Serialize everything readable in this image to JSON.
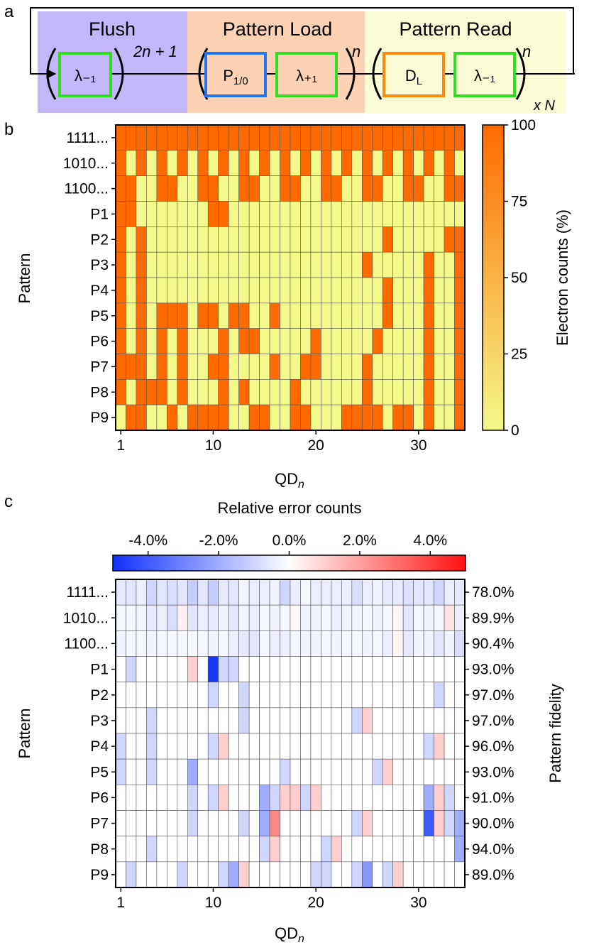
{
  "panel_a": {
    "label": "a",
    "flush": {
      "title": "Flush",
      "box": "λ₋₁",
      "exponent": "2n + 1",
      "color": "#c3b7f9"
    },
    "load": {
      "title": "Pattern Load",
      "box1": "P1/0",
      "box1_main": "P",
      "box1_sub": "1/0",
      "box2": "λ₊₁",
      "exponent": "n",
      "color": "#fcd1b4"
    },
    "read": {
      "title": "Pattern Read",
      "box1": "DL",
      "box1_main": "D",
      "box1_sub": "L",
      "box2": "λ₋₁",
      "exponent": "n",
      "color": "#fbfcd5"
    },
    "repeat": "x N",
    "colors": {
      "green": "#33dd22",
      "blue": "#2277ee",
      "orange": "#ff8811"
    }
  },
  "chart_data": [
    {
      "panel": "b",
      "type": "heatmap",
      "xlabel": "QDn",
      "ylabel": "Pattern",
      "yticks": [
        "1111...",
        "1010...",
        "1100...",
        "P1",
        "P2",
        "P3",
        "P4",
        "P5",
        "P6",
        "P7",
        "P8",
        "P9"
      ],
      "xticks": [
        1,
        10,
        20,
        30
      ],
      "n_columns": 34,
      "colorbar": {
        "label": "Electron counts (%)",
        "ticks": [
          0,
          25,
          50,
          75,
          100
        ],
        "range": [
          0,
          100
        ],
        "low_color": "#f4f98a",
        "high_color": "#ff6a00"
      },
      "rows": [
        "1111111111111111111111111111111111",
        "1010101010101010101010101010101010",
        "1100110011001100110011001100110011",
        "1100000001100000000000000000000000",
        "1010000000000000000000000010000011",
        "1010000000000000000000001000001001",
        "1010000000000000000000000010001001",
        "1010111011011001000000000010001001",
        "1010101000101100000100000100001001",
        "1110101001100001001100001000001001",
        "1011101000101000010000001000001001",
        "0110010111100110011000111101101001"
      ]
    },
    {
      "panel": "c",
      "type": "heatmap",
      "xlabel": "QDn",
      "ylabel": "Pattern",
      "right_label": "Pattern fidelity",
      "yticks": [
        "1111...",
        "1010...",
        "1100...",
        "P1",
        "P2",
        "P3",
        "P4",
        "P5",
        "P6",
        "P7",
        "P8",
        "P9"
      ],
      "fidelity": [
        "78.0%",
        "89.9%",
        "90.4%",
        "93.0%",
        "97.0%",
        "97.0%",
        "96.0%",
        "93.0%",
        "91.0%",
        "90.0%",
        "94.0%",
        "89.0%"
      ],
      "xticks": [
        1,
        10,
        20,
        30
      ],
      "n_columns": 34,
      "colorbar": {
        "label": "Relative error counts",
        "ticks": [
          "-4.0%",
          "-2.0%",
          "0.0%",
          "2.0%",
          "4.0%"
        ],
        "tick_values": [
          -4,
          -2,
          0,
          2,
          4
        ],
        "range": [
          -5,
          5
        ],
        "low_color": "#1030ff",
        "mid_color": "#ffffff",
        "high_color": "#ff1010"
      },
      "values": [
        [
          -0.5,
          -0.6,
          -0.4,
          -1.0,
          -0.6,
          -0.8,
          -0.6,
          -1.2,
          -0.6,
          -1.2,
          -0.5,
          -0.6,
          -0.3,
          -0.4,
          -0.4,
          -0.3,
          -1.0,
          -0.4,
          -0.2,
          -0.4,
          -0.4,
          -0.4,
          -0.4,
          -0.8,
          -0.4,
          -0.3,
          -0.5,
          -0.5,
          -0.7,
          -0.6,
          -0.6,
          -1.0,
          -0.4,
          -0.5
        ],
        [
          -0.2,
          -0.2,
          -0.3,
          -0.5,
          -0.4,
          -0.8,
          0.3,
          -0.6,
          -0.4,
          -0.5,
          -0.3,
          -0.6,
          -0.3,
          -0.4,
          -0.2,
          -0.3,
          -0.2,
          0.1,
          -0.3,
          -0.3,
          -0.2,
          -0.4,
          -0.3,
          -0.3,
          -0.2,
          -0.3,
          -0.2,
          0.2,
          -0.6,
          -0.2,
          -0.3,
          -0.2,
          0.6,
          -0.4
        ],
        [
          -0.3,
          -0.2,
          -0.2,
          -0.3,
          -0.2,
          -0.2,
          -0.2,
          -0.2,
          -0.2,
          -0.3,
          -0.2,
          -0.4,
          -0.5,
          -0.6,
          -0.2,
          -0.4,
          -0.4,
          -0.2,
          -0.3,
          -0.3,
          -0.2,
          -0.3,
          -0.2,
          -0.2,
          -0.3,
          -0.2,
          -0.4,
          0.2,
          -0.5,
          -0.3,
          -0.3,
          -0.6,
          -0.3,
          -0.8
        ],
        [
          0,
          -1.0,
          0,
          0,
          0,
          0,
          0,
          1.0,
          0,
          -4.8,
          -1.0,
          -1.0,
          0,
          0,
          0,
          0,
          0,
          0,
          0,
          0,
          0,
          0,
          0,
          0,
          0,
          0,
          0,
          0,
          0,
          0,
          0,
          0,
          0,
          0
        ],
        [
          0,
          0,
          0,
          0,
          0,
          0,
          0,
          0,
          0,
          -1.0,
          0,
          0,
          -1.0,
          0,
          0,
          0,
          0,
          0,
          0,
          0,
          0,
          0,
          0,
          0,
          0,
          0,
          0,
          0,
          0,
          0,
          0,
          -1.0,
          0,
          0
        ],
        [
          0,
          0,
          0,
          -1.0,
          0,
          0,
          0,
          0,
          0,
          0,
          0,
          0,
          -1.0,
          0,
          0,
          0,
          0,
          0,
          0,
          0,
          0,
          0,
          0,
          -1.0,
          1.0,
          0,
          0,
          0,
          0,
          0,
          0,
          0,
          0,
          0
        ],
        [
          -1.0,
          0,
          0,
          -1.0,
          0,
          0,
          0,
          0,
          0,
          -1.0,
          1.0,
          0,
          0,
          0,
          0,
          0,
          0,
          0,
          0,
          0,
          0,
          0,
          0,
          0,
          0,
          0,
          0,
          0,
          0,
          0,
          -1.0,
          1.0,
          0,
          0
        ],
        [
          -1.0,
          0,
          0,
          -1.0,
          0,
          0,
          0,
          -2.0,
          0,
          0,
          0,
          0,
          0,
          0,
          0,
          0,
          -1.0,
          0,
          0,
          0,
          0,
          0,
          0,
          0,
          0,
          -1.0,
          1.0,
          0,
          0,
          0,
          0,
          0,
          0,
          0
        ],
        [
          0,
          0,
          0,
          0,
          0,
          0,
          0,
          -1.0,
          0,
          -1.0,
          1.0,
          0,
          0,
          0,
          -2.0,
          -1.0,
          1.0,
          1.0,
          -1.0,
          1.0,
          0,
          0,
          0,
          0,
          0,
          0,
          0,
          0,
          0,
          0,
          -2.0,
          1.0,
          -1.0,
          0
        ],
        [
          0,
          0,
          0,
          0,
          0,
          0,
          0,
          -1.0,
          0,
          0,
          0,
          0,
          -1.0,
          0,
          -2.0,
          2.5,
          0,
          0,
          0,
          0,
          0,
          0,
          0,
          -1.0,
          1.0,
          0,
          0,
          0,
          0,
          0,
          -4.0,
          1.0,
          -1.0,
          -2.0
        ],
        [
          0,
          0,
          0,
          -1.0,
          0,
          0,
          0,
          0,
          0,
          0,
          0,
          0,
          0,
          0,
          -1.0,
          1.0,
          0,
          0,
          0,
          0,
          -1.0,
          1.0,
          0,
          0,
          0,
          0,
          0,
          0,
          0,
          0,
          0,
          0,
          0,
          -2.0
        ],
        [
          0,
          -1.0,
          0,
          0,
          0,
          0,
          -1.0,
          0,
          0,
          0,
          -1.0,
          -2.0,
          1.0,
          0,
          0,
          0,
          0,
          0,
          0,
          -1.0,
          -1.0,
          0,
          0,
          -1.0,
          -2.5,
          0,
          -1.0,
          1.0,
          0,
          0,
          0,
          0,
          0,
          0
        ]
      ]
    }
  ]
}
